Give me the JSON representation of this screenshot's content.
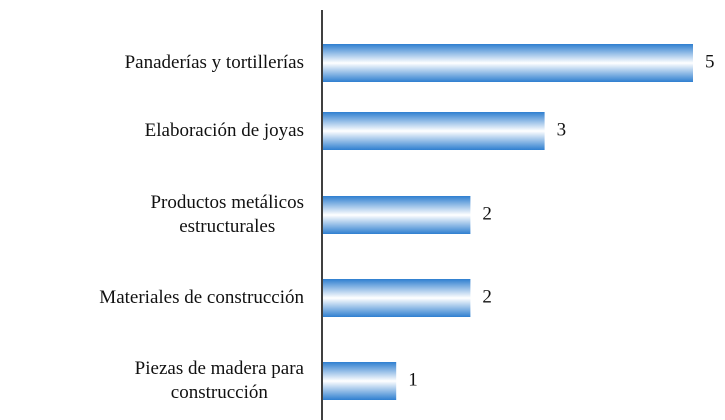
{
  "chart_data": {
    "type": "bar",
    "orientation": "horizontal",
    "categories": [
      "Panaderías y tortillerías",
      "Elaboración de joyas",
      "Productos metálicos\nestructurales",
      "Materiales de construcción",
      "Piezas de madera para\nconstrucción"
    ],
    "values": [
      5,
      3,
      2,
      2,
      1
    ],
    "color": "#2f7fd0"
  }
}
